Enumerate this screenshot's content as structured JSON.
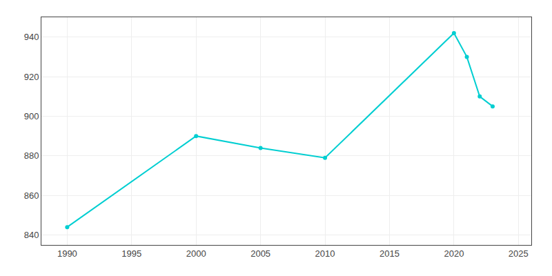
{
  "chart_data": {
    "type": "line",
    "x": [
      1990,
      2000,
      2005,
      2010,
      2020,
      2021,
      2022,
      2023
    ],
    "values": [
      844,
      890,
      884,
      879,
      942,
      930,
      910,
      905
    ],
    "color": "#00CED1",
    "marker": "circle",
    "xlim": [
      1988,
      2026
    ],
    "xticks": [
      1990,
      1995,
      2000,
      2005,
      2010,
      2015,
      2020,
      2025
    ],
    "ylim": [
      835,
      950
    ],
    "yticks": [
      840,
      860,
      880,
      900,
      920,
      940
    ],
    "grid": true
  }
}
